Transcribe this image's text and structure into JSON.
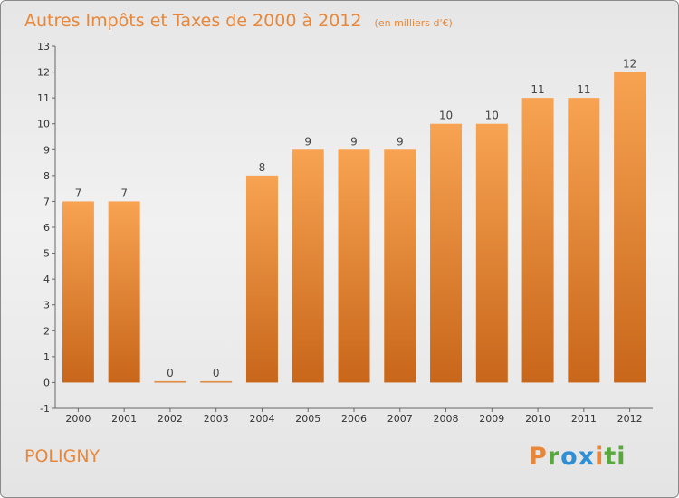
{
  "chart_data": {
    "type": "bar",
    "title": "Autres Impôts et Taxes de 2000 à 2012",
    "subtitle": "(en milliers d'€)",
    "categories": [
      "2000",
      "2001",
      "2002",
      "2003",
      "2004",
      "2005",
      "2006",
      "2007",
      "2008",
      "2009",
      "2010",
      "2011",
      "2012"
    ],
    "values": [
      7,
      7,
      0,
      0,
      8,
      9,
      9,
      9,
      10,
      10,
      11,
      11,
      12
    ],
    "data_labels": [
      "7",
      "7",
      "0",
      "0",
      "8",
      "9",
      "9",
      "9",
      "10",
      "10",
      "11",
      "11",
      "12"
    ],
    "ylim": [
      -1,
      13
    ],
    "yticks": [
      "-1",
      "0",
      "1",
      "2",
      "3",
      "4",
      "5",
      "6",
      "7",
      "8",
      "9",
      "10",
      "11",
      "12",
      "13"
    ],
    "grid": false,
    "bar_color_top": "#f7a352",
    "bar_color_bottom": "#c8661a"
  },
  "place_name": "POLIGNY",
  "logo": {
    "letters": [
      "P",
      "r",
      "o",
      "x",
      "i",
      "t",
      "i"
    ],
    "colors": [
      "#e8873a",
      "#59a83d",
      "#2f8fd6",
      "#2f8fd6",
      "#e8873a",
      "#59a83d",
      "#59a83d"
    ]
  }
}
